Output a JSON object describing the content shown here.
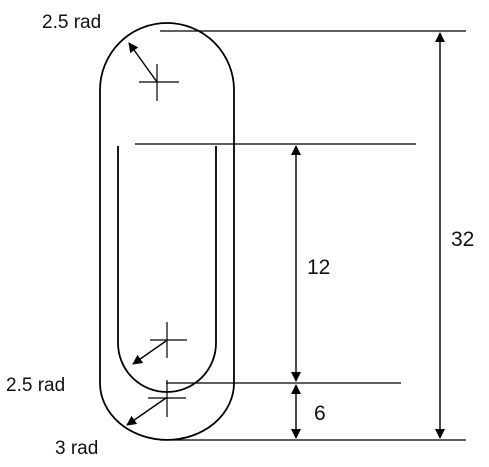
{
  "background": "#ffffff",
  "line_color": "#000000",
  "labels": {
    "top_radius": "2.5 rad",
    "inner_radius": "2.5 rad",
    "outer_radius": "3 rad",
    "dim_inner_length": "12",
    "dim_total_height": "32",
    "dim_bottom_gap": "6"
  }
}
